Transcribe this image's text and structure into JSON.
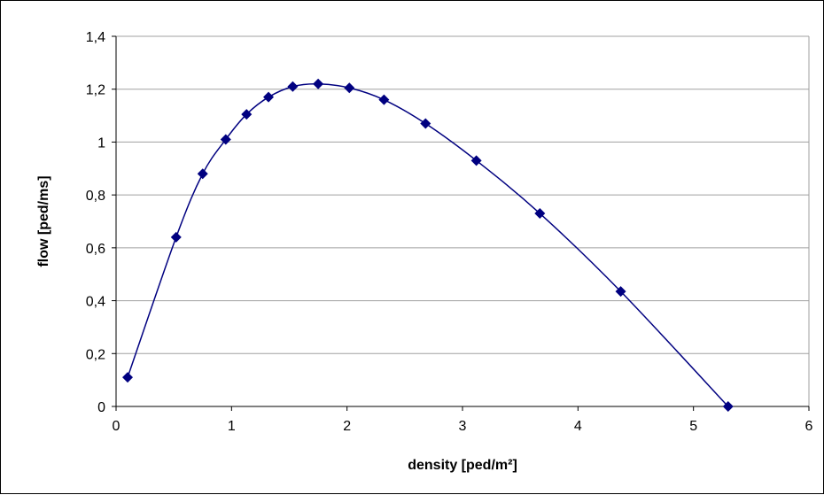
{
  "chart_data": {
    "type": "scatter",
    "title": "",
    "xlabel": "density [ped/m²]",
    "ylabel": "flow [ped/ms]",
    "xlim": [
      0,
      6
    ],
    "ylim": [
      0,
      1.4
    ],
    "x_ticks": [
      "0",
      "1",
      "2",
      "3",
      "4",
      "5",
      "6"
    ],
    "y_ticks": [
      "0",
      "0,2",
      "0,4",
      "0,6",
      "0,8",
      "1",
      "1,2",
      "1,4"
    ],
    "grid": "horizontal",
    "legend": "none",
    "marker": "diamond",
    "line": "smoothed",
    "series": [
      {
        "x": [
          0.1,
          0.52,
          0.75,
          0.95,
          1.13,
          1.32,
          1.53,
          1.75,
          2.02,
          2.32,
          2.68,
          3.12,
          3.67,
          4.37,
          5.3
        ],
        "y": [
          0.11,
          0.64,
          0.88,
          1.01,
          1.105,
          1.17,
          1.21,
          1.22,
          1.205,
          1.16,
          1.07,
          0.93,
          0.73,
          0.435,
          0.0
        ],
        "color": "#000080"
      }
    ]
  }
}
